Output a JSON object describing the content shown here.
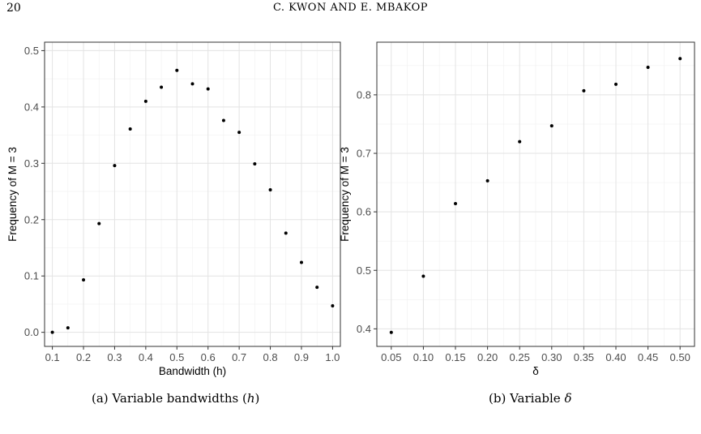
{
  "header": {
    "page_number": "20",
    "running_title": "C. KWON AND E. MBAKOP"
  },
  "captions": {
    "a_prefix": "(a) Variable bandwidths (",
    "a_math": "h",
    "a_suffix": ")",
    "b_prefix": "(b) Variable ",
    "b_math": "δ"
  },
  "chart_data": [
    {
      "type": "scatter",
      "xlabel": "Bandwidth (h)",
      "ylabel": "Frequency of M = 3",
      "xlim": [
        0.075,
        1.025
      ],
      "ylim": [
        -0.025,
        0.515
      ],
      "x_ticks": [
        0.1,
        0.2,
        0.3,
        0.4,
        0.5,
        0.6,
        0.7,
        0.8,
        0.9,
        1.0
      ],
      "x_tick_labels": [
        "0.1",
        "0.2",
        "0.3",
        "0.4",
        "0.5",
        "0.6",
        "0.7",
        "0.8",
        "0.9",
        "1.0"
      ],
      "y_ticks": [
        0.0,
        0.1,
        0.2,
        0.3,
        0.4,
        0.5
      ],
      "y_tick_labels": [
        "0.0",
        "0.1",
        "0.2",
        "0.3",
        "0.4",
        "0.5"
      ],
      "grid": true,
      "x": [
        0.1,
        0.15,
        0.2,
        0.25,
        0.3,
        0.35,
        0.4,
        0.45,
        0.5,
        0.55,
        0.6,
        0.65,
        0.7,
        0.75,
        0.8,
        0.85,
        0.9,
        0.95,
        1.0
      ],
      "y": [
        0.0,
        0.008,
        0.093,
        0.193,
        0.296,
        0.361,
        0.41,
        0.435,
        0.465,
        0.441,
        0.432,
        0.376,
        0.355,
        0.299,
        0.253,
        0.176,
        0.124,
        0.08,
        0.047
      ]
    },
    {
      "type": "scatter",
      "xlabel": "δ",
      "ylabel": "Frequency of M = 3",
      "xlim": [
        0.0275,
        0.5225
      ],
      "ylim": [
        0.37,
        0.89
      ],
      "x_ticks": [
        0.05,
        0.1,
        0.15,
        0.2,
        0.25,
        0.3,
        0.35,
        0.4,
        0.45,
        0.5
      ],
      "x_tick_labels": [
        "0.05",
        "0.10",
        "0.15",
        "0.20",
        "0.25",
        "0.30",
        "0.35",
        "0.40",
        "0.45",
        "0.50"
      ],
      "y_ticks": [
        0.4,
        0.5,
        0.6,
        0.7,
        0.8
      ],
      "y_tick_labels": [
        "0.4",
        "0.5",
        "0.6",
        "0.7",
        "0.8"
      ],
      "grid": true,
      "x": [
        0.05,
        0.1,
        0.15,
        0.2,
        0.25,
        0.3,
        0.35,
        0.4,
        0.45,
        0.5
      ],
      "y": [
        0.394,
        0.49,
        0.614,
        0.653,
        0.72,
        0.747,
        0.807,
        0.818,
        0.847,
        0.862
      ]
    }
  ]
}
